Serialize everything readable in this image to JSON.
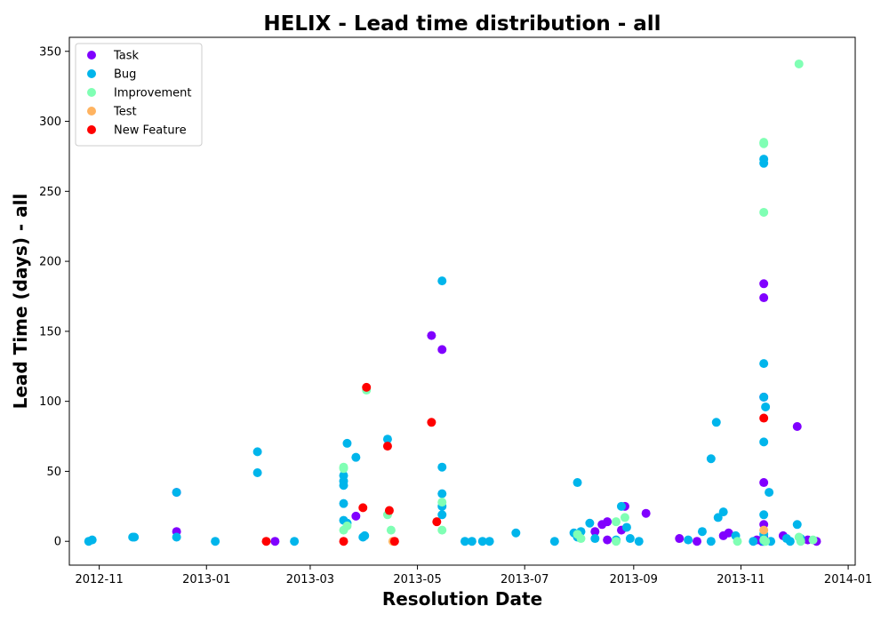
{
  "chart_data": {
    "type": "scatter",
    "title": "HELIX - Lead time distribution - all",
    "xlabel": "Resolution Date",
    "ylabel": "Lead Time (days) - all",
    "xlim": [
      "2012-10-15",
      "2014-01-05"
    ],
    "ylim": [
      -17,
      360
    ],
    "x_ticks": [
      "2012-11",
      "2013-01",
      "2013-03",
      "2013-05",
      "2013-07",
      "2013-09",
      "2013-11",
      "2014-01"
    ],
    "x_tick_dates": [
      "2012-11-01",
      "2013-01-01",
      "2013-03-01",
      "2013-05-01",
      "2013-07-01",
      "2013-09-01",
      "2013-11-01",
      "2014-01-01"
    ],
    "y_ticks": [
      0,
      50,
      100,
      150,
      200,
      250,
      300,
      350
    ],
    "grid": false,
    "legend_position": "top-left",
    "series": [
      {
        "name": "Task",
        "color": "#8000ff",
        "points": [
          [
            "2012-12-15",
            7
          ],
          [
            "2012-12-15",
            35
          ],
          [
            "2013-02-09",
            0
          ],
          [
            "2013-03-27",
            18
          ],
          [
            "2013-05-09",
            147
          ],
          [
            "2013-05-15",
            137
          ],
          [
            "2013-08-10",
            7
          ],
          [
            "2013-08-14",
            12
          ],
          [
            "2013-08-17",
            14
          ],
          [
            "2013-08-17",
            1
          ],
          [
            "2013-08-25",
            8
          ],
          [
            "2013-08-27",
            25
          ],
          [
            "2013-09-08",
            20
          ],
          [
            "2013-09-27",
            2
          ],
          [
            "2013-10-07",
            0
          ],
          [
            "2013-10-22",
            4
          ],
          [
            "2013-10-25",
            6
          ],
          [
            "2013-11-10",
            1
          ],
          [
            "2013-11-13",
            0
          ],
          [
            "2013-11-14",
            184
          ],
          [
            "2013-11-14",
            174
          ],
          [
            "2013-11-14",
            103
          ],
          [
            "2013-11-14",
            42
          ],
          [
            "2013-11-14",
            12
          ],
          [
            "2013-11-14",
            3
          ],
          [
            "2013-11-25",
            4
          ],
          [
            "2013-12-03",
            82
          ],
          [
            "2013-12-09",
            1
          ],
          [
            "2013-12-14",
            0
          ]
        ]
      },
      {
        "name": "Bug",
        "color": "#00b5eb",
        "points": [
          [
            "2012-10-26",
            0
          ],
          [
            "2012-10-28",
            1
          ],
          [
            "2012-11-20",
            3
          ],
          [
            "2012-11-21",
            3
          ],
          [
            "2012-12-15",
            35
          ],
          [
            "2012-12-15",
            3
          ],
          [
            "2013-01-06",
            0
          ],
          [
            "2013-01-30",
            64
          ],
          [
            "2013-01-30",
            49
          ],
          [
            "2013-02-20",
            0
          ],
          [
            "2013-03-20",
            47
          ],
          [
            "2013-03-20",
            43
          ],
          [
            "2013-03-20",
            40
          ],
          [
            "2013-03-20",
            27
          ],
          [
            "2013-03-20",
            15
          ],
          [
            "2013-03-22",
            70
          ],
          [
            "2013-03-22",
            13
          ],
          [
            "2013-03-27",
            60
          ],
          [
            "2013-03-31",
            3
          ],
          [
            "2013-04-01",
            4
          ],
          [
            "2013-04-14",
            73
          ],
          [
            "2013-05-15",
            186
          ],
          [
            "2013-05-15",
            53
          ],
          [
            "2013-05-15",
            34
          ],
          [
            "2013-05-15",
            25
          ],
          [
            "2013-05-15",
            19
          ],
          [
            "2013-05-28",
            0
          ],
          [
            "2013-06-01",
            0
          ],
          [
            "2013-06-07",
            0
          ],
          [
            "2013-06-11",
            0
          ],
          [
            "2013-06-26",
            6
          ],
          [
            "2013-07-18",
            0
          ],
          [
            "2013-07-29",
            6
          ],
          [
            "2013-07-31",
            42
          ],
          [
            "2013-07-31",
            3
          ],
          [
            "2013-08-02",
            7
          ],
          [
            "2013-08-07",
            13
          ],
          [
            "2013-08-10",
            2
          ],
          [
            "2013-08-22",
            1
          ],
          [
            "2013-08-25",
            25
          ],
          [
            "2013-08-28",
            10
          ],
          [
            "2013-08-30",
            2
          ],
          [
            "2013-09-04",
            0
          ],
          [
            "2013-10-02",
            1
          ],
          [
            "2013-10-10",
            7
          ],
          [
            "2013-10-15",
            59
          ],
          [
            "2013-10-15",
            0
          ],
          [
            "2013-10-18",
            85
          ],
          [
            "2013-10-19",
            17
          ],
          [
            "2013-10-22",
            21
          ],
          [
            "2013-10-29",
            4
          ],
          [
            "2013-11-08",
            0
          ],
          [
            "2013-11-14",
            273
          ],
          [
            "2013-11-14",
            270
          ],
          [
            "2013-11-14",
            127
          ],
          [
            "2013-11-14",
            103
          ],
          [
            "2013-11-15",
            96
          ],
          [
            "2013-11-14",
            71
          ],
          [
            "2013-11-17",
            35
          ],
          [
            "2013-11-14",
            19
          ],
          [
            "2013-11-14",
            5
          ],
          [
            "2013-11-14",
            0
          ],
          [
            "2013-11-18",
            0
          ],
          [
            "2013-11-27",
            2
          ],
          [
            "2013-11-29",
            0
          ],
          [
            "2013-12-03",
            12
          ],
          [
            "2013-12-05",
            2
          ]
        ]
      },
      {
        "name": "Improvement",
        "color": "#80ffb4",
        "points": [
          [
            "2013-03-20",
            52
          ],
          [
            "2013-03-20",
            53
          ],
          [
            "2013-03-20",
            8
          ],
          [
            "2013-03-22",
            11
          ],
          [
            "2013-04-02",
            108
          ],
          [
            "2013-04-14",
            19
          ],
          [
            "2013-04-16",
            8
          ],
          [
            "2013-05-15",
            28
          ],
          [
            "2013-05-15",
            8
          ],
          [
            "2013-07-31",
            5
          ],
          [
            "2013-08-02",
            2
          ],
          [
            "2013-08-22",
            14
          ],
          [
            "2013-08-27",
            17
          ],
          [
            "2013-08-22",
            0
          ],
          [
            "2013-10-30",
            0
          ],
          [
            "2013-11-14",
            285
          ],
          [
            "2013-11-14",
            284
          ],
          [
            "2013-11-14",
            235
          ],
          [
            "2013-11-14",
            1
          ],
          [
            "2013-11-15",
            0
          ],
          [
            "2013-12-04",
            341
          ],
          [
            "2013-12-04",
            3
          ],
          [
            "2013-12-05",
            0
          ],
          [
            "2013-12-12",
            1
          ]
        ]
      },
      {
        "name": "Test",
        "color": "#ffb360",
        "points": [
          [
            "2013-04-17",
            0
          ],
          [
            "2013-11-14",
            8
          ]
        ]
      },
      {
        "name": "New Feature",
        "color": "#ff0000",
        "points": [
          [
            "2013-02-04",
            0
          ],
          [
            "2013-03-20",
            0
          ],
          [
            "2013-03-31",
            24
          ],
          [
            "2013-04-02",
            110
          ],
          [
            "2013-04-14",
            68
          ],
          [
            "2013-04-15",
            22
          ],
          [
            "2013-04-18",
            0
          ],
          [
            "2013-05-09",
            85
          ],
          [
            "2013-05-12",
            14
          ],
          [
            "2013-11-14",
            88
          ]
        ]
      }
    ]
  }
}
